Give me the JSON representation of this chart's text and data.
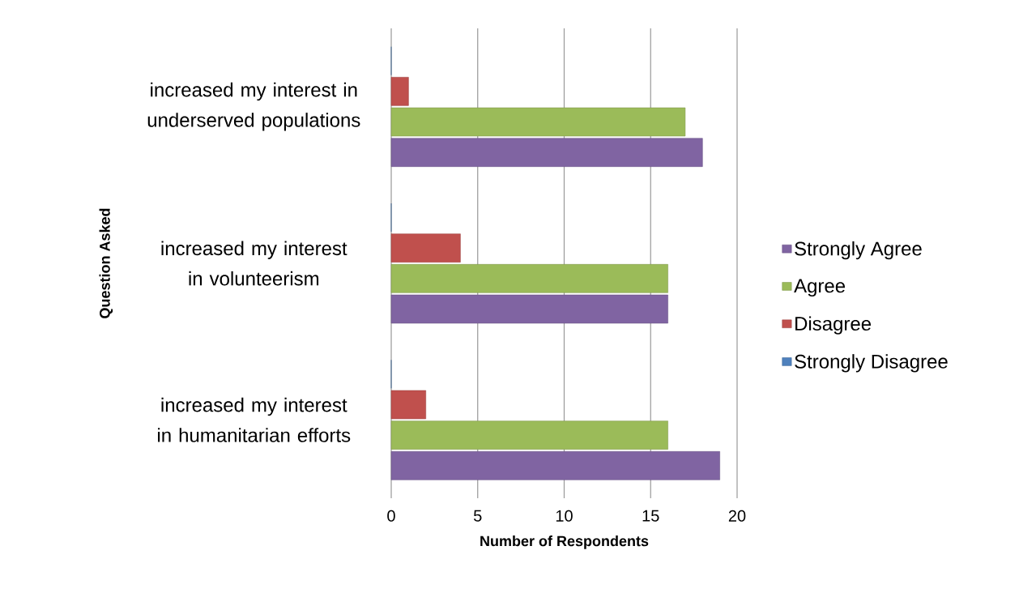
{
  "chart_data": {
    "type": "bar",
    "orientation": "horizontal",
    "categories": [
      "increased my interest in underserved populations",
      "increased my interest in volunteerism",
      "increased my interest in humanitarian efforts"
    ],
    "series": [
      {
        "name": "Strongly Agree",
        "color": "#8064a2",
        "values": [
          18,
          16,
          19
        ]
      },
      {
        "name": "Agree",
        "color": "#9bbb59",
        "values": [
          17,
          16,
          16
        ]
      },
      {
        "name": "Disagree",
        "color": "#c0504d",
        "values": [
          1,
          4,
          2
        ]
      },
      {
        "name": "Strongly Disagree",
        "color": "#4f81bd",
        "values": [
          0,
          0,
          0
        ]
      }
    ],
    "xlim": [
      0,
      20
    ],
    "xticks": [
      0,
      5,
      10,
      15,
      20
    ],
    "xlabel": "Number of Respondents",
    "ylabel": "Question Asked",
    "grid": "x",
    "legend": "right"
  }
}
